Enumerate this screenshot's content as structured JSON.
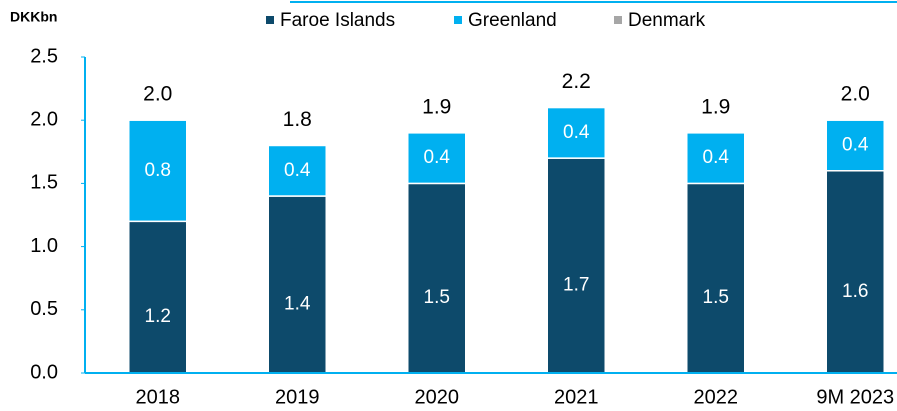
{
  "chart_data": {
    "type": "stacked-bar",
    "unit_label": "DKKbn",
    "categories": [
      "2018",
      "2019",
      "2020",
      "2021",
      "2022",
      "9M 2023"
    ],
    "series": [
      {
        "name": "Faroe Islands",
        "color": "#0d4a6b",
        "values": [
          1.2,
          1.4,
          1.5,
          1.7,
          1.5,
          1.6
        ]
      },
      {
        "name": "Greenland",
        "color": "#00b0f0",
        "values": [
          0.8,
          0.4,
          0.4,
          0.4,
          0.4,
          0.4
        ]
      },
      {
        "name": "Denmark",
        "color": "#a6a6a6",
        "values": [
          0,
          0,
          0,
          0,
          0,
          0
        ]
      }
    ],
    "totals": [
      2.0,
      1.8,
      1.9,
      2.2,
      1.9,
      2.0
    ],
    "total_labels": [
      "2.0",
      "1.8",
      "1.9",
      "2.2",
      "1.9",
      "2.0"
    ],
    "value_labels": [
      [
        "1.2",
        "1.4",
        "1.5",
        "1.7",
        "1.5",
        "1.6"
      ],
      [
        "0.8",
        "0.4",
        "0.4",
        "0.4",
        "0.4",
        "0.4"
      ],
      null
    ],
    "ylim": [
      0,
      2.5
    ],
    "yticks": [
      {
        "value": 0,
        "label": "0.0"
      },
      {
        "value": 0.5,
        "label": "0.5"
      },
      {
        "value": 1,
        "label": "1.0"
      },
      {
        "value": 1.5,
        "label": "1.5"
      },
      {
        "value": 2,
        "label": "2.0"
      },
      {
        "value": 2.5,
        "label": "2.5"
      }
    ],
    "axis_color": "#00b0f0"
  }
}
